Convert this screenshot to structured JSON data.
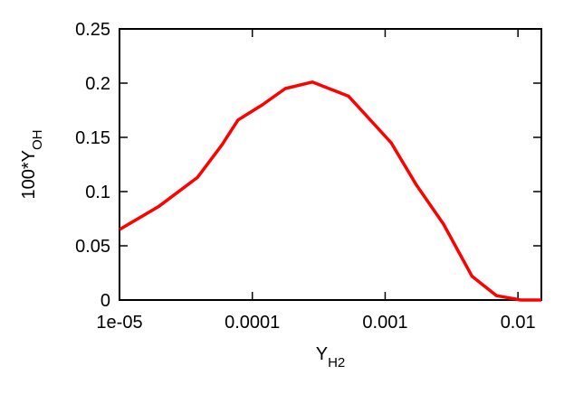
{
  "chart_data": {
    "type": "line",
    "xscale": "log",
    "xlabel": {
      "text": "Y",
      "sub": "H2"
    },
    "ylabel": {
      "text": "100*Y",
      "sub": "OH"
    },
    "x": [
      1e-05,
      1.96e-05,
      3.86e-05,
      5.9e-05,
      7.8e-05,
      0.000119,
      0.000177,
      0.000283,
      0.00053,
      0.00111,
      0.00172,
      0.00275,
      0.0045,
      0.0069,
      0.0105,
      0.015
    ],
    "series": [
      {
        "color": "#ff0000",
        "values": [
          0.065,
          0.086,
          0.113,
          0.143,
          0.166,
          0.18,
          0.195,
          0.201,
          0.188,
          0.145,
          0.106,
          0.07,
          0.022,
          0.004,
          0.0,
          0.0
        ]
      }
    ],
    "xlim": [
      1e-05,
      0.015
    ],
    "xticks": [
      {
        "value": 1e-05,
        "label": "1e-05"
      },
      0.0001,
      0.001,
      0.01
    ],
    "ylim": [
      0,
      0.25
    ],
    "yticks": [
      0,
      0.05,
      0.1,
      0.15,
      0.2,
      0.25
    ]
  }
}
